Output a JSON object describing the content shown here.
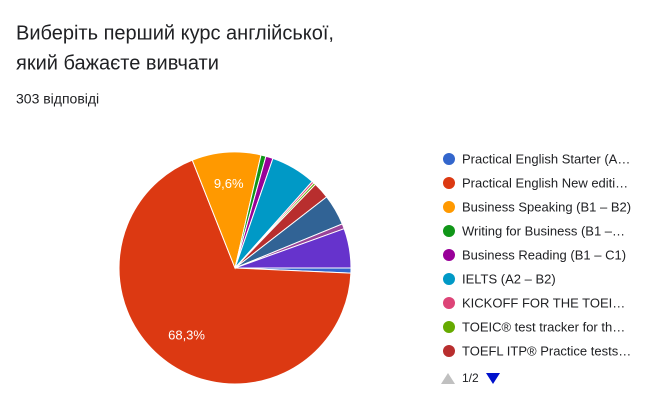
{
  "chart_data": {
    "type": "pie",
    "title_lines": [
      "Виберіть перший курс   англійської,",
      "який бажаєте вивчати"
    ],
    "subtitle": "303 відповіді",
    "categories": [
      "Practical English Starter (A…",
      "Practical English New editi…",
      "Business Speaking (B1 – B2)",
      "Writing for Business (B1 –…",
      "Business Reading (B1 – C1)",
      "IELTS (A2 – B2)",
      "KICKOFF FOR THE TOEI…",
      "TOEIC® test tracker for th…",
      "TOEFL ITP® Practice tests…",
      null,
      null,
      null
    ],
    "values": [
      0.7,
      68.3,
      9.6,
      0.7,
      1.0,
      6.3,
      0.3,
      0.3,
      2.3,
      4.3,
      0.7,
      5.5
    ],
    "value_labels": [
      null,
      "68,3%",
      "9,6%",
      null,
      null,
      null,
      null,
      null,
      null,
      null,
      null,
      null
    ],
    "colors": [
      "#3366cc",
      "#dc3912",
      "#ff9900",
      "#109618",
      "#990099",
      "#0099c6",
      "#dd4477",
      "#66aa00",
      "#b82e2e",
      "#316395",
      "#994499",
      "#6633cc"
    ],
    "legend_page": "1/2"
  }
}
